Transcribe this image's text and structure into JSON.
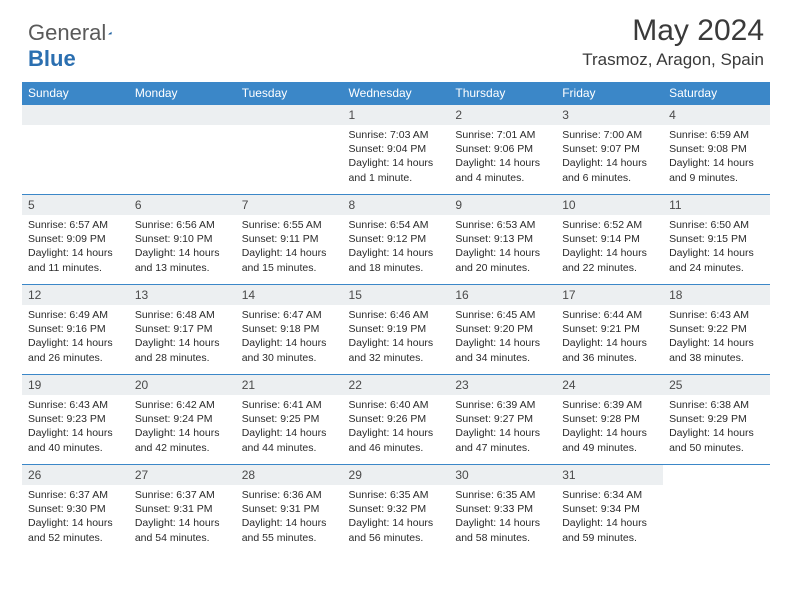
{
  "brand": {
    "part1": "General",
    "part2": "Blue"
  },
  "title": "May 2024",
  "location": "Trasmoz, Aragon, Spain",
  "colors": {
    "header_bg": "#3b87c8",
    "daynum_bg": "#eceff1",
    "border": "#3b87c8",
    "text": "#2a2a2a",
    "title": "#3a3a3a"
  },
  "dow": [
    "Sunday",
    "Monday",
    "Tuesday",
    "Wednesday",
    "Thursday",
    "Friday",
    "Saturday"
  ],
  "weeks": [
    [
      null,
      null,
      null,
      {
        "n": "1",
        "sr": "7:03 AM",
        "ss": "9:04 PM",
        "dl": "14 hours and 1 minute."
      },
      {
        "n": "2",
        "sr": "7:01 AM",
        "ss": "9:06 PM",
        "dl": "14 hours and 4 minutes."
      },
      {
        "n": "3",
        "sr": "7:00 AM",
        "ss": "9:07 PM",
        "dl": "14 hours and 6 minutes."
      },
      {
        "n": "4",
        "sr": "6:59 AM",
        "ss": "9:08 PM",
        "dl": "14 hours and 9 minutes."
      }
    ],
    [
      {
        "n": "5",
        "sr": "6:57 AM",
        "ss": "9:09 PM",
        "dl": "14 hours and 11 minutes."
      },
      {
        "n": "6",
        "sr": "6:56 AM",
        "ss": "9:10 PM",
        "dl": "14 hours and 13 minutes."
      },
      {
        "n": "7",
        "sr": "6:55 AM",
        "ss": "9:11 PM",
        "dl": "14 hours and 15 minutes."
      },
      {
        "n": "8",
        "sr": "6:54 AM",
        "ss": "9:12 PM",
        "dl": "14 hours and 18 minutes."
      },
      {
        "n": "9",
        "sr": "6:53 AM",
        "ss": "9:13 PM",
        "dl": "14 hours and 20 minutes."
      },
      {
        "n": "10",
        "sr": "6:52 AM",
        "ss": "9:14 PM",
        "dl": "14 hours and 22 minutes."
      },
      {
        "n": "11",
        "sr": "6:50 AM",
        "ss": "9:15 PM",
        "dl": "14 hours and 24 minutes."
      }
    ],
    [
      {
        "n": "12",
        "sr": "6:49 AM",
        "ss": "9:16 PM",
        "dl": "14 hours and 26 minutes."
      },
      {
        "n": "13",
        "sr": "6:48 AM",
        "ss": "9:17 PM",
        "dl": "14 hours and 28 minutes."
      },
      {
        "n": "14",
        "sr": "6:47 AM",
        "ss": "9:18 PM",
        "dl": "14 hours and 30 minutes."
      },
      {
        "n": "15",
        "sr": "6:46 AM",
        "ss": "9:19 PM",
        "dl": "14 hours and 32 minutes."
      },
      {
        "n": "16",
        "sr": "6:45 AM",
        "ss": "9:20 PM",
        "dl": "14 hours and 34 minutes."
      },
      {
        "n": "17",
        "sr": "6:44 AM",
        "ss": "9:21 PM",
        "dl": "14 hours and 36 minutes."
      },
      {
        "n": "18",
        "sr": "6:43 AM",
        "ss": "9:22 PM",
        "dl": "14 hours and 38 minutes."
      }
    ],
    [
      {
        "n": "19",
        "sr": "6:43 AM",
        "ss": "9:23 PM",
        "dl": "14 hours and 40 minutes."
      },
      {
        "n": "20",
        "sr": "6:42 AM",
        "ss": "9:24 PM",
        "dl": "14 hours and 42 minutes."
      },
      {
        "n": "21",
        "sr": "6:41 AM",
        "ss": "9:25 PM",
        "dl": "14 hours and 44 minutes."
      },
      {
        "n": "22",
        "sr": "6:40 AM",
        "ss": "9:26 PM",
        "dl": "14 hours and 46 minutes."
      },
      {
        "n": "23",
        "sr": "6:39 AM",
        "ss": "9:27 PM",
        "dl": "14 hours and 47 minutes."
      },
      {
        "n": "24",
        "sr": "6:39 AM",
        "ss": "9:28 PM",
        "dl": "14 hours and 49 minutes."
      },
      {
        "n": "25",
        "sr": "6:38 AM",
        "ss": "9:29 PM",
        "dl": "14 hours and 50 minutes."
      }
    ],
    [
      {
        "n": "26",
        "sr": "6:37 AM",
        "ss": "9:30 PM",
        "dl": "14 hours and 52 minutes."
      },
      {
        "n": "27",
        "sr": "6:37 AM",
        "ss": "9:31 PM",
        "dl": "14 hours and 54 minutes."
      },
      {
        "n": "28",
        "sr": "6:36 AM",
        "ss": "9:31 PM",
        "dl": "14 hours and 55 minutes."
      },
      {
        "n": "29",
        "sr": "6:35 AM",
        "ss": "9:32 PM",
        "dl": "14 hours and 56 minutes."
      },
      {
        "n": "30",
        "sr": "6:35 AM",
        "ss": "9:33 PM",
        "dl": "14 hours and 58 minutes."
      },
      {
        "n": "31",
        "sr": "6:34 AM",
        "ss": "9:34 PM",
        "dl": "14 hours and 59 minutes."
      },
      null
    ]
  ],
  "labels": {
    "sunrise": "Sunrise:",
    "sunset": "Sunset:",
    "daylight": "Daylight:"
  }
}
